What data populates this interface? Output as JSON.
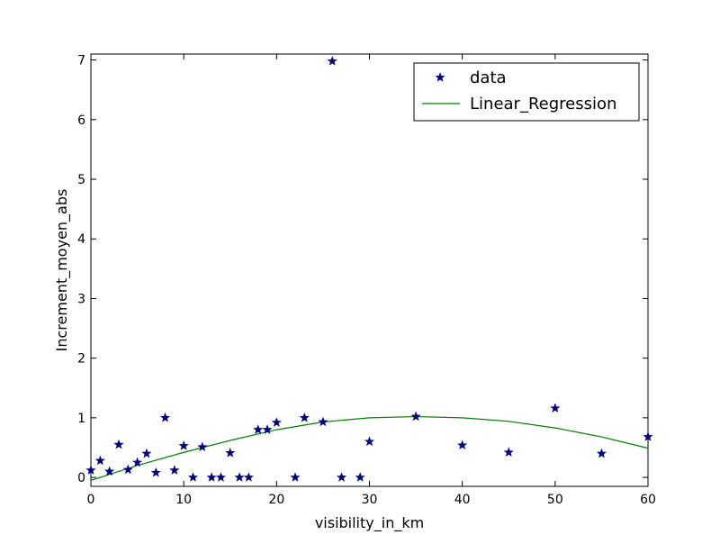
{
  "chart_data": {
    "type": "scatter",
    "title": "",
    "xlabel": "visibility_in_km",
    "ylabel": "Increment_moyen_abs",
    "xlim": [
      0,
      60
    ],
    "ylim": [
      -0.15,
      7.1
    ],
    "grid": false,
    "legend_position": "top-right",
    "x_ticks": [
      0,
      10,
      20,
      30,
      40,
      50,
      60
    ],
    "y_ticks": [
      0,
      1,
      2,
      3,
      4,
      5,
      6,
      7
    ],
    "x_tick_labels": [
      "0",
      "10",
      "20",
      "30",
      "40",
      "50",
      "60"
    ],
    "y_tick_labels": [
      "0",
      "1",
      "2",
      "3",
      "4",
      "5",
      "6",
      "7"
    ],
    "series": [
      {
        "name": "data",
        "kind": "scatter",
        "marker": "star",
        "color": "#000080",
        "points": [
          {
            "x": 0,
            "y": 0.12
          },
          {
            "x": 1,
            "y": 0.28
          },
          {
            "x": 2,
            "y": 0.1
          },
          {
            "x": 3,
            "y": 0.55
          },
          {
            "x": 4,
            "y": 0.13
          },
          {
            "x": 5,
            "y": 0.25
          },
          {
            "x": 6,
            "y": 0.4
          },
          {
            "x": 7,
            "y": 0.08
          },
          {
            "x": 8,
            "y": 1.0
          },
          {
            "x": 9,
            "y": 0.12
          },
          {
            "x": 10,
            "y": 0.53
          },
          {
            "x": 11,
            "y": 0.0
          },
          {
            "x": 12,
            "y": 0.51
          },
          {
            "x": 13,
            "y": 0.0
          },
          {
            "x": 14,
            "y": 0.0
          },
          {
            "x": 15,
            "y": 0.41
          },
          {
            "x": 16,
            "y": 0.0
          },
          {
            "x": 17,
            "y": 0.0
          },
          {
            "x": 18,
            "y": 0.8
          },
          {
            "x": 19,
            "y": 0.8
          },
          {
            "x": 20,
            "y": 0.92
          },
          {
            "x": 22,
            "y": 0.0
          },
          {
            "x": 23,
            "y": 1.0
          },
          {
            "x": 25,
            "y": 0.93
          },
          {
            "x": 26,
            "y": 6.98
          },
          {
            "x": 27,
            "y": 0.0
          },
          {
            "x": 29,
            "y": 0.0
          },
          {
            "x": 30,
            "y": 0.6
          },
          {
            "x": 35,
            "y": 1.02
          },
          {
            "x": 40,
            "y": 0.54
          },
          {
            "x": 45,
            "y": 0.42
          },
          {
            "x": 50,
            "y": 1.16
          },
          {
            "x": 55,
            "y": 0.4
          },
          {
            "x": 60,
            "y": 0.68
          }
        ]
      },
      {
        "name": "Linear_Regression",
        "kind": "line",
        "color": "#008000",
        "points": [
          {
            "x": 0,
            "y": -0.05
          },
          {
            "x": 5,
            "y": 0.2
          },
          {
            "x": 10,
            "y": 0.42
          },
          {
            "x": 15,
            "y": 0.62
          },
          {
            "x": 20,
            "y": 0.8
          },
          {
            "x": 25,
            "y": 0.93
          },
          {
            "x": 30,
            "y": 1.0
          },
          {
            "x": 35,
            "y": 1.02
          },
          {
            "x": 40,
            "y": 1.0
          },
          {
            "x": 45,
            "y": 0.94
          },
          {
            "x": 50,
            "y": 0.83
          },
          {
            "x": 55,
            "y": 0.68
          },
          {
            "x": 60,
            "y": 0.49
          }
        ]
      }
    ]
  }
}
